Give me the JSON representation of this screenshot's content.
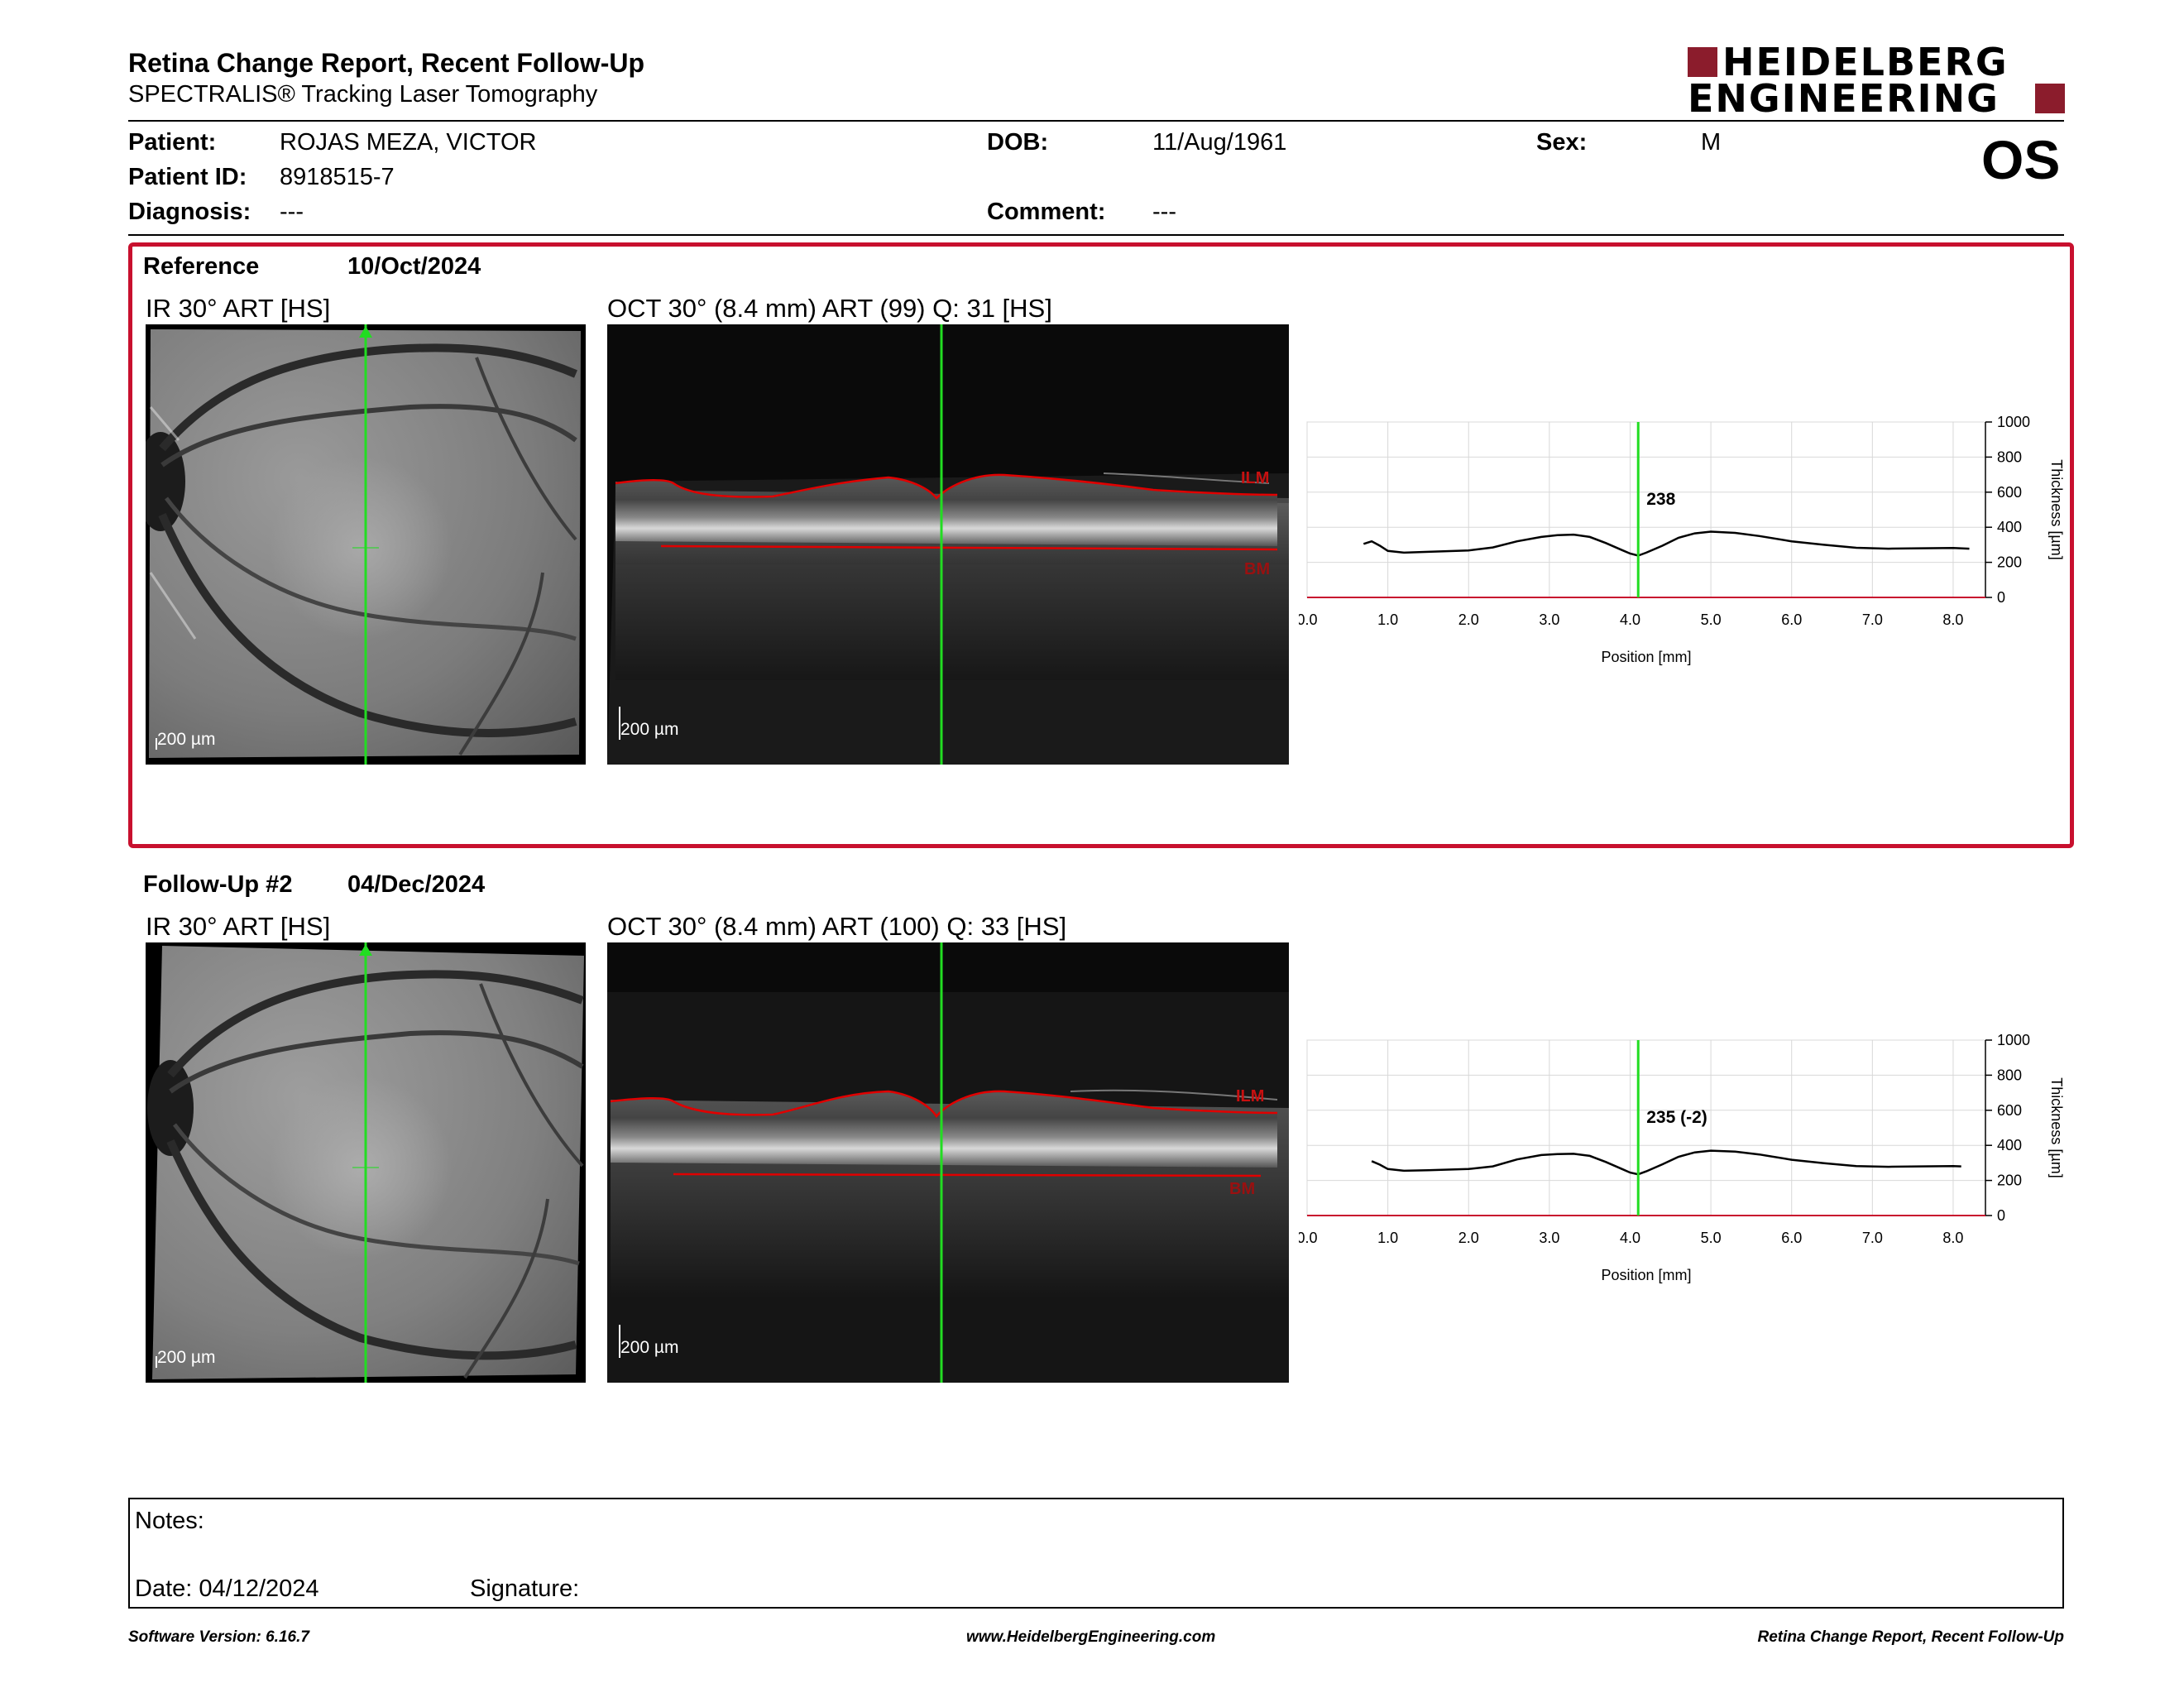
{
  "header": {
    "title": "Retina Change Report, Recent Follow-Up",
    "subtitle": "SPECTRALIS® Tracking Laser Tomography",
    "logo_line1": "HEIDELBERG",
    "logo_line2": "ENGINEERING"
  },
  "patient": {
    "patient_label": "Patient:",
    "patient_name": "ROJAS MEZA, VICTOR",
    "id_label": "Patient ID:",
    "id_value": "8918515-7",
    "diagnosis_label": "Diagnosis:",
    "diagnosis_value": "---",
    "dob_label": "DOB:",
    "dob_value": "11/Aug/1961",
    "comment_label": "Comment:",
    "comment_value": "---",
    "sex_label": "Sex:",
    "sex_value": "M",
    "eye": "OS"
  },
  "reference": {
    "label": "Reference",
    "date": "10/Oct/2024",
    "ir_title": "IR 30° ART [HS]",
    "oct_title": "OCT 30° (8.4 mm) ART (99) Q: 31 [HS]",
    "ir_scale": "200 µm",
    "oct_scale": "200 µm",
    "ilm_label": "ILM",
    "bm_label": "BM"
  },
  "followup": {
    "label": "Follow-Up #2",
    "date": "04/Dec/2024",
    "ir_title": "IR 30° ART [HS]",
    "oct_title": "OCT 30° (8.4 mm) ART (100) Q: 33 [HS]",
    "ir_scale": "200 µm",
    "oct_scale": "200 µm",
    "ilm_label": "ILM",
    "bm_label": "BM"
  },
  "chart_data": [
    {
      "type": "line",
      "xlabel": "Position [mm]",
      "ylabel": "Thickness [µm]",
      "xlim": [
        0,
        8.4
      ],
      "ylim": [
        0,
        1000
      ],
      "xticks": [
        "0.0",
        "1.0",
        "2.0",
        "3.0",
        "4.0",
        "5.0",
        "6.0",
        "7.0",
        "8.0"
      ],
      "yticks": [
        "0",
        "200",
        "400",
        "600",
        "800",
        "1000"
      ],
      "cursor_x": 4.1,
      "cursor_label": "238",
      "grid": true,
      "x": [
        0.7,
        0.8,
        0.9,
        1.0,
        1.2,
        1.5,
        2.0,
        2.3,
        2.6,
        2.9,
        3.1,
        3.3,
        3.5,
        3.7,
        3.9,
        4.0,
        4.1,
        4.2,
        4.4,
        4.6,
        4.8,
        5.0,
        5.3,
        5.6,
        6.0,
        6.4,
        6.8,
        7.2,
        7.6,
        8.0,
        8.2
      ],
      "y": [
        305,
        320,
        295,
        265,
        255,
        260,
        268,
        285,
        320,
        345,
        355,
        358,
        345,
        310,
        270,
        250,
        238,
        255,
        295,
        340,
        365,
        375,
        368,
        350,
        320,
        300,
        283,
        278,
        280,
        282,
        278
      ]
    },
    {
      "type": "line",
      "xlabel": "Position [mm]",
      "ylabel": "Thickness [µm]",
      "xlim": [
        0,
        8.4
      ],
      "ylim": [
        0,
        1000
      ],
      "xticks": [
        "0.0",
        "1.0",
        "2.0",
        "3.0",
        "4.0",
        "5.0",
        "6.0",
        "7.0",
        "8.0"
      ],
      "yticks": [
        "0",
        "200",
        "400",
        "600",
        "800",
        "1000"
      ],
      "cursor_x": 4.1,
      "cursor_label": "235 (-2)",
      "grid": true,
      "x": [
        0.8,
        0.9,
        1.0,
        1.2,
        1.5,
        2.0,
        2.3,
        2.6,
        2.9,
        3.1,
        3.3,
        3.5,
        3.7,
        3.9,
        4.0,
        4.1,
        4.2,
        4.4,
        4.6,
        4.8,
        5.0,
        5.3,
        5.6,
        6.0,
        6.4,
        6.8,
        7.2,
        7.6,
        8.0,
        8.1
      ],
      "y": [
        310,
        290,
        265,
        255,
        258,
        265,
        280,
        320,
        345,
        350,
        352,
        340,
        305,
        265,
        245,
        235,
        252,
        292,
        335,
        360,
        370,
        364,
        348,
        318,
        298,
        282,
        278,
        280,
        282,
        280
      ]
    }
  ],
  "notes": {
    "notes_label": "Notes:",
    "date_label": "Date: 04/12/2024",
    "signature_label": "Signature:"
  },
  "footer": {
    "software": "Software Version: 6.16.7",
    "website": "www.HeidelbergEngineering.com",
    "report": "Retina Change Report, Recent Follow-Up"
  },
  "colors": {
    "accent": "#c8102e",
    "brand": "#8b1c2c",
    "scan_line": "#22dd22",
    "layer_line": "#e00000",
    "layer_label": "#9a1010"
  }
}
